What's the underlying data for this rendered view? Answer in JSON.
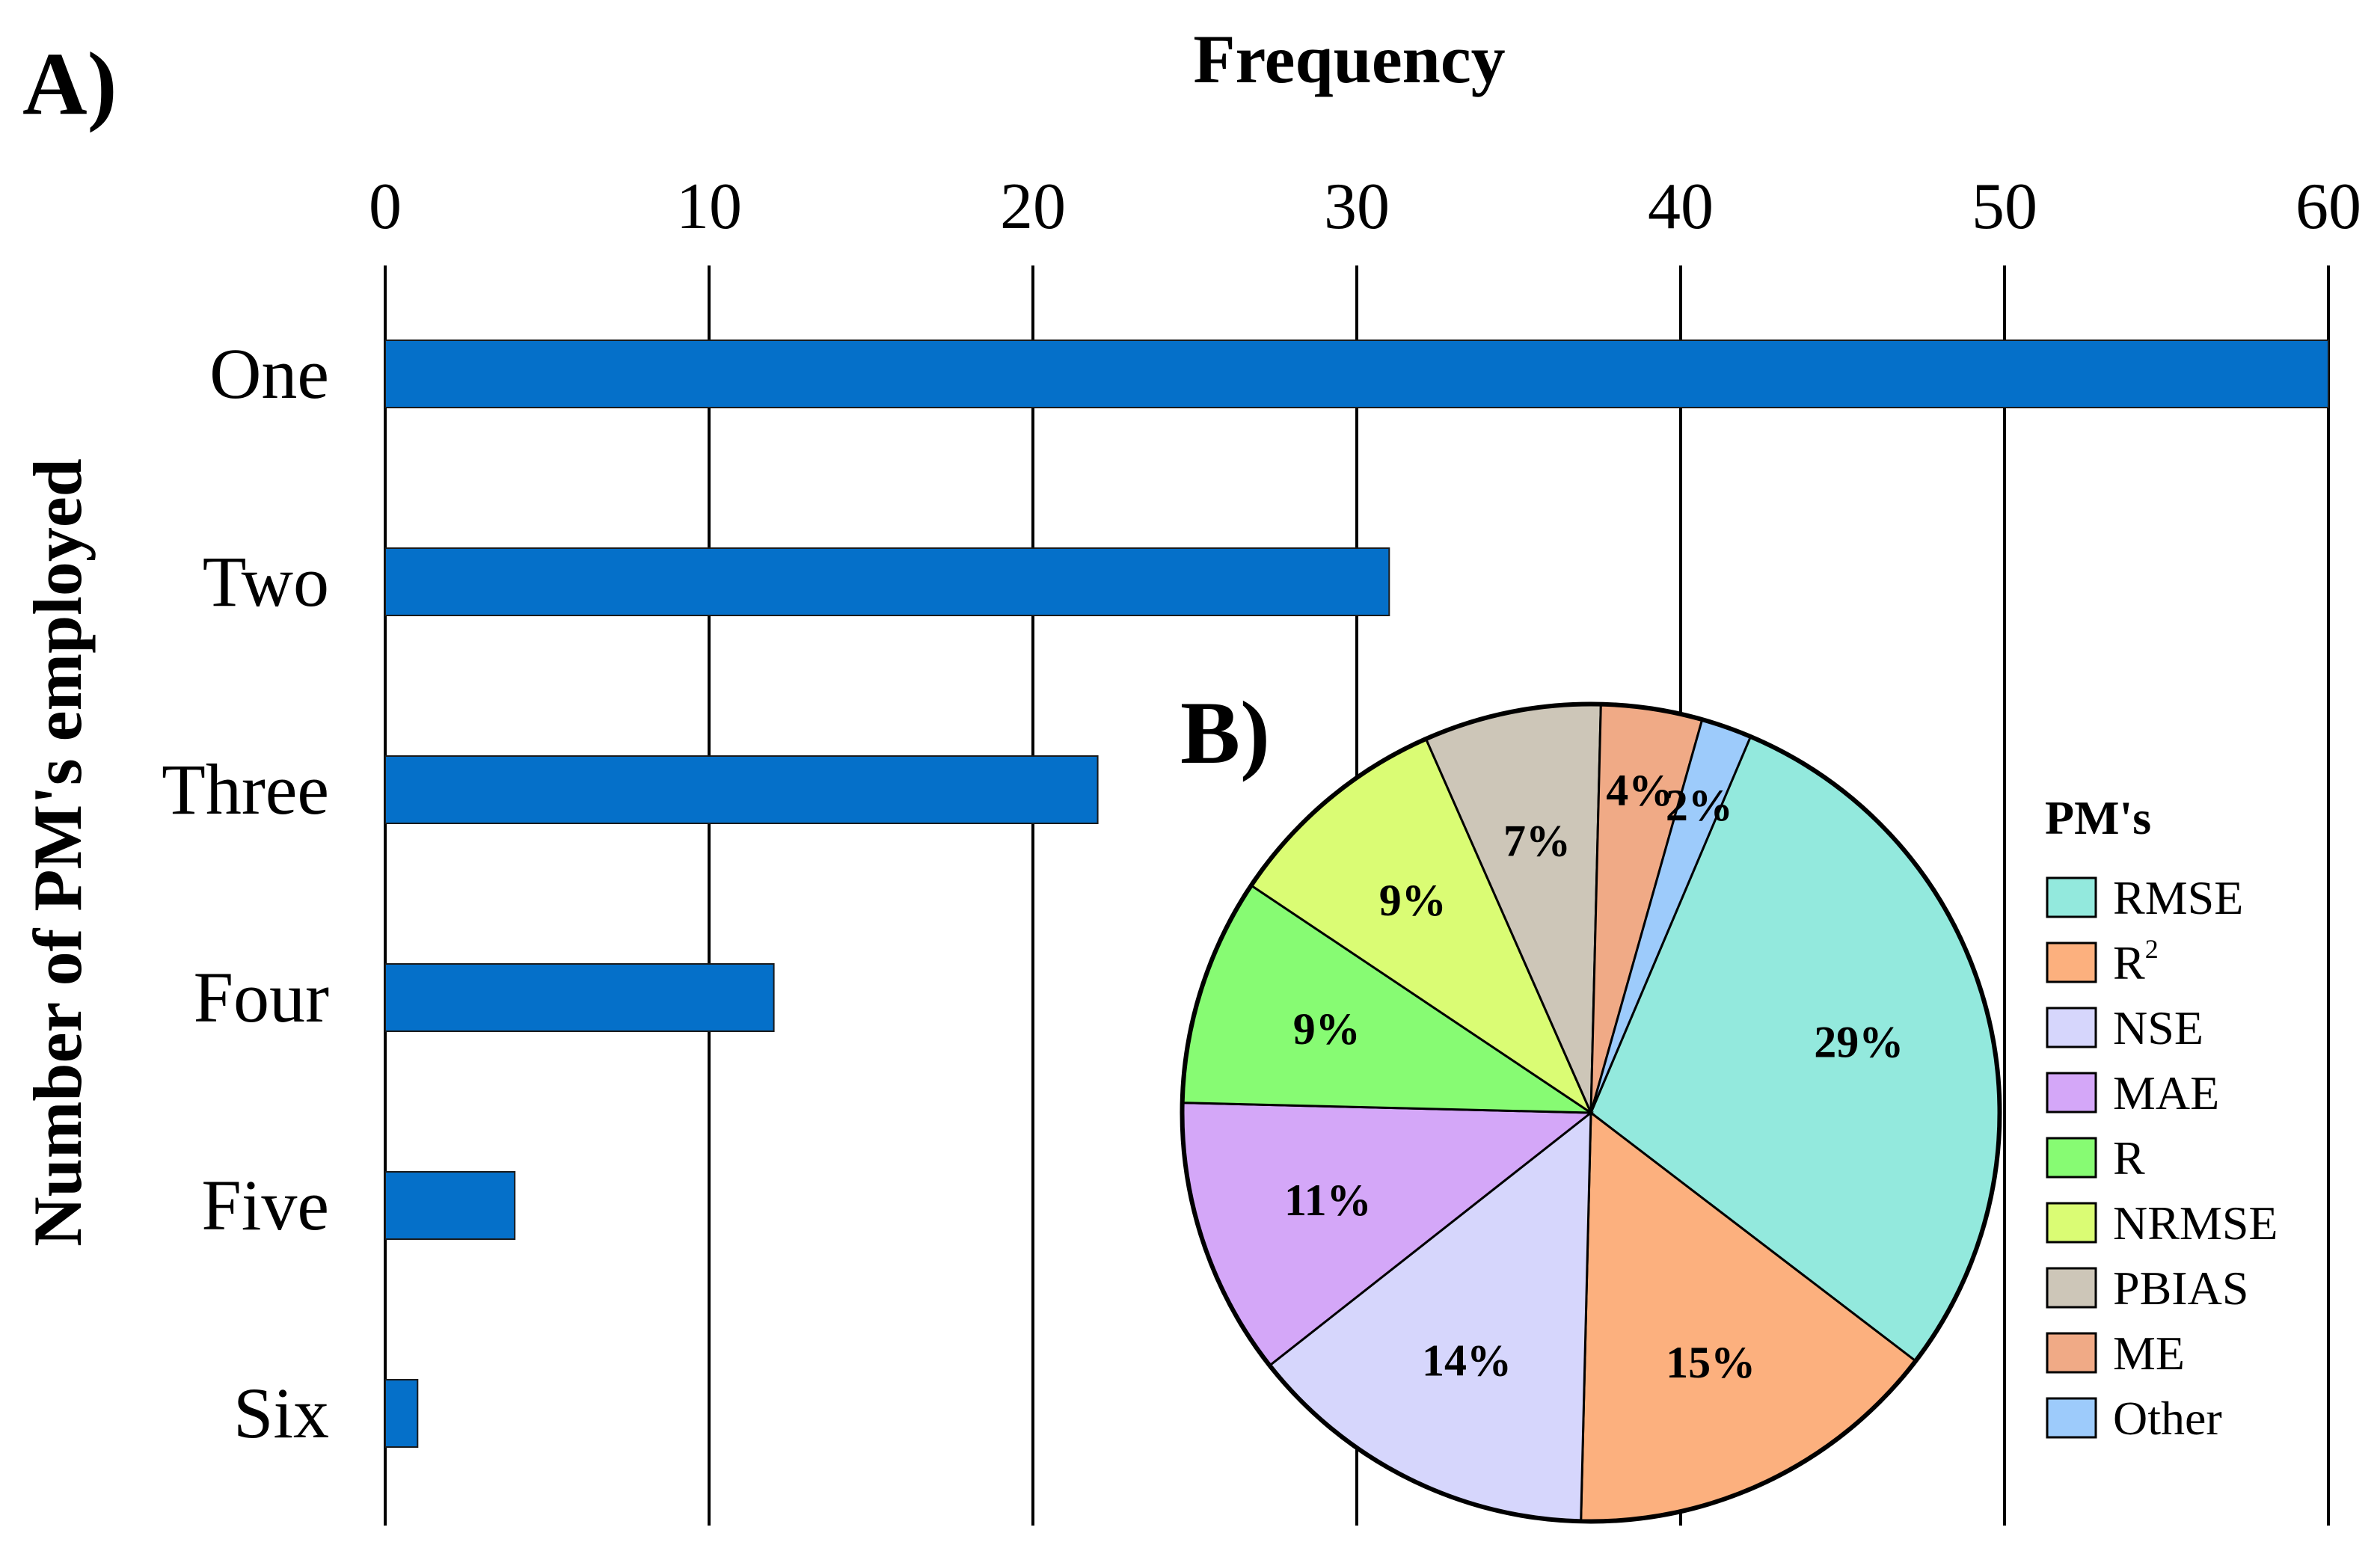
{
  "chart_data": [
    {
      "type": "bar",
      "orientation": "horizontal",
      "panel_label": "A)",
      "title": "",
      "xlabel": "Frequency",
      "ylabel": "Number of PM's employed",
      "xlim": [
        0,
        60
      ],
      "xticks": [
        0,
        10,
        20,
        30,
        40,
        50,
        60
      ],
      "grid": "vertical",
      "categories": [
        "One",
        "Two",
        "Three",
        "Four",
        "Five",
        "Six"
      ],
      "values": [
        60,
        31,
        22,
        12,
        4,
        1
      ],
      "color": "#0570C9"
    },
    {
      "type": "pie",
      "panel_label": "B)",
      "legend_title": "PM's",
      "legend_position": "right",
      "labels": [
        "RMSE",
        "R",
        "NSE",
        "MAE",
        "R",
        "NRMSE",
        "PBIAS",
        "ME",
        "Other"
      ],
      "label_superscripts": [
        "",
        "2",
        "",
        "",
        "",
        "",
        "",
        "",
        ""
      ],
      "values": [
        29,
        15,
        14,
        11,
        9,
        9,
        7,
        4,
        2
      ],
      "value_labels": [
        "29%",
        "15%",
        "14%",
        "11%",
        "9%",
        "9%",
        "7%",
        "4%",
        "2%"
      ],
      "colors": [
        "#93E9DD",
        "#FCB07E",
        "#D6D6FC",
        "#D4A7F8",
        "#87FB73",
        "#DAFC74",
        "#CDC6B8",
        "#F0AA86",
        "#9DCBFB"
      ]
    }
  ]
}
